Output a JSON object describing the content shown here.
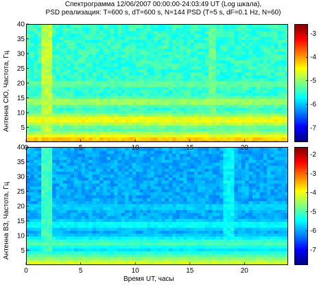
{
  "title_line1": "Спектрограмма   12/06/2007    00:00:00-24:03:49 UT (Log шкала),",
  "title_line2": "PSD реализация: T=600 s, dT=600 s, N=144 PSD (T=5 s, dF=0.1 Hz, N=60)",
  "colors": {
    "colormap": [
      "#00007f",
      "#0000ff",
      "#0080ff",
      "#00ffff",
      "#80ff80",
      "#ffff00",
      "#ff8000",
      "#ff0000",
      "#7f0000"
    ],
    "frame": "#000000"
  },
  "chart_data": [
    {
      "type": "heatmap",
      "ylabel": "Антенна СЮ, Частота, Гц",
      "xlabel": "",
      "x_ticks": [
        0,
        5,
        10,
        15,
        20
      ],
      "y_ticks": [
        5,
        10,
        15,
        20,
        25,
        30,
        35,
        40
      ],
      "xlim": [
        0,
        24
      ],
      "ylim": [
        0,
        40
      ],
      "colorbar_ticks": [
        "-3",
        "-4",
        "-5",
        "-6",
        "-7"
      ],
      "colorbar_values": [
        -3,
        -4,
        -5,
        -6,
        -7
      ],
      "clim": [
        -7.6,
        -2.6
      ],
      "features": [
        {
          "kind": "horizontal_band",
          "freq_hz": 7.8,
          "level": -4.4
        },
        {
          "kind": "horizontal_band",
          "freq_hz": 14.0,
          "level": -4.8
        },
        {
          "kind": "horizontal_band",
          "freq_hz": 20.0,
          "level": -5.1
        },
        {
          "kind": "horizontal_band",
          "freq_hz": 0.8,
          "level": -4.0
        },
        {
          "kind": "vertical_burst",
          "time_h": 1.8,
          "level": -4.8
        },
        {
          "kind": "vertical_burst",
          "time_h": 17.0,
          "level": -5.2
        }
      ],
      "background_level": -5.5
    },
    {
      "type": "heatmap",
      "ylabel": "Антенна ВЗ, Частота, Гц",
      "xlabel": "Время UT, часы",
      "x_ticks": [
        0,
        5,
        10,
        15,
        20
      ],
      "y_ticks": [
        5,
        10,
        15,
        20,
        25,
        30,
        35,
        40
      ],
      "xlim": [
        0,
        24
      ],
      "ylim": [
        0,
        40
      ],
      "colorbar_ticks": [
        "-2",
        "-3",
        "-4",
        "-5",
        "-6",
        "-7"
      ],
      "colorbar_values": [
        -2,
        -3,
        -4,
        -5,
        -6,
        -7
      ],
      "clim": [
        -7.8,
        -1.6
      ],
      "features": [
        {
          "kind": "horizontal_band",
          "freq_hz": 7.8,
          "level": -4.9
        },
        {
          "kind": "horizontal_band",
          "freq_hz": 14.0,
          "level": -5.3
        },
        {
          "kind": "horizontal_band",
          "freq_hz": 20.0,
          "level": -5.6
        },
        {
          "kind": "horizontal_band",
          "freq_hz": 0.8,
          "level": -4.0
        },
        {
          "kind": "vertical_burst",
          "time_h": 1.8,
          "level": -5.1
        },
        {
          "kind": "vertical_burst",
          "time_h": 18.5,
          "level": -5.5
        }
      ],
      "background_level": -6.0
    }
  ]
}
